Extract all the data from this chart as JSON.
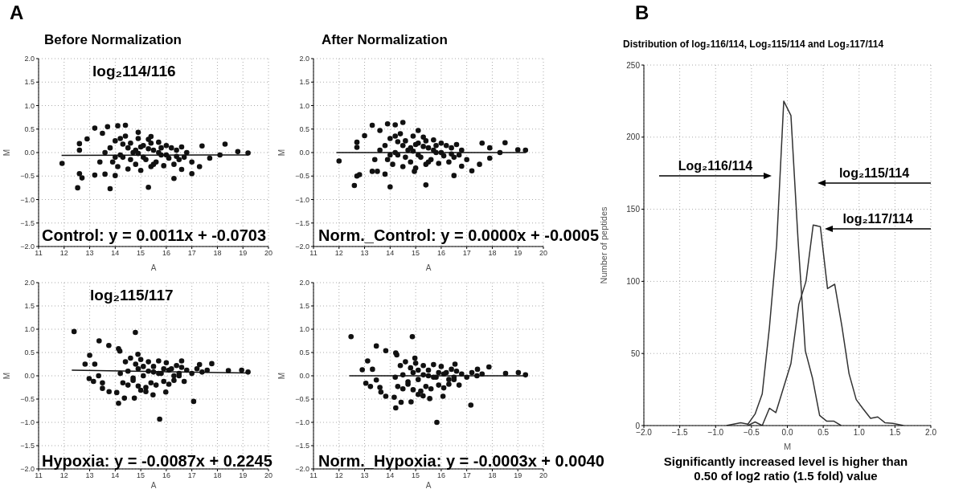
{
  "chart_data": [
    {
      "type": "scatter",
      "title": "Before Normalization",
      "xlabel": "A",
      "ylabel": "M",
      "annotations": [
        "A",
        "log₂114/116",
        "Control: y = 0.0011x + -0.0703"
      ],
      "xlim": [
        11,
        20
      ],
      "ylim": [
        -2,
        2
      ],
      "xticks": [
        11,
        12,
        13,
        14,
        15,
        16,
        17,
        18,
        19,
        20
      ],
      "yticks": [
        {
          "value": -2,
          "label": "−2.0"
        },
        {
          "value": -1.5,
          "label": "−1.5"
        },
        {
          "value": -1,
          "label": "−1.0"
        },
        {
          "value": -0.5,
          "label": "−0.5"
        },
        {
          "value": 0,
          "label": "0.0"
        },
        {
          "value": 0.5,
          "label": "0.5"
        },
        {
          "value": 1,
          "label": "1.0"
        },
        {
          "value": 1.5,
          "label": "1.5"
        },
        {
          "value": 2,
          "label": "2.0"
        }
      ],
      "grid": true,
      "series": [
        {
          "color": "#111111",
          "marker": "circle",
          "x": [
            11.92,
            12.53,
            12.6,
            12.7,
            12.6,
            12.6,
            12.9,
            13.2,
            13.5,
            13.7,
            13.8,
            14.1,
            14.4,
            15.3,
            16.3,
            17.0,
            17.3,
            17.7,
            18.3,
            18.1,
            18.8,
            19.2,
            17.4,
            13.2,
            13.6,
            14.0,
            14.9,
            15.4,
            16.6,
            13.8,
            13.9,
            14.0,
            14.1,
            14.2,
            14.3,
            14.4,
            14.5,
            14.6,
            14.7,
            14.8,
            14.9,
            15.0,
            15.1,
            15.2,
            15.3,
            15.4,
            15.5,
            15.6,
            15.7,
            15.8,
            15.9,
            16.0,
            16.1,
            16.2,
            16.3,
            16.4,
            16.5,
            16.6,
            16.7,
            16.8,
            17.0,
            14.2,
            14.5,
            14.8,
            15.1,
            15.4,
            15.7,
            16.0,
            14.0,
            14.6,
            15.0,
            15.5,
            13.6,
            13.4,
            14.3,
            14.9,
            15.3,
            15.8,
            16.4
          ],
          "values": [
            -0.23,
            -0.75,
            -0.45,
            -0.54,
            0.19,
            0.05,
            0.29,
            0.52,
            0.41,
            0.55,
            -0.77,
            0.57,
            0.58,
            -0.74,
            -0.55,
            -0.45,
            -0.3,
            -0.12,
            0.18,
            -0.05,
            0.02,
            -0.01,
            0.14,
            -0.48,
            -0.46,
            -0.49,
            0.43,
            0.34,
            -0.36,
            0.1,
            -0.2,
            0.25,
            -0.3,
            0.3,
            -0.1,
            0.35,
            -0.35,
            0.2,
            0.0,
            -0.25,
            0.3,
            -0.38,
            0.15,
            -0.15,
            0.28,
            -0.3,
            0.05,
            -0.2,
            0.22,
            -0.05,
            -0.28,
            0.15,
            -0.12,
            0.1,
            -0.25,
            0.05,
            -0.15,
            0.12,
            -0.1,
            0.0,
            -0.2,
            -0.05,
            0.1,
            0.05,
            -0.1,
            0.2,
            0.0,
            -0.05,
            -0.1,
            -0.15,
            0.12,
            -0.25,
            0.0,
            -0.2,
            0.18,
            -0.02,
            0.08,
            0.1,
            -0.08
          ]
        },
        {
          "type": "line",
          "color": "#111111",
          "marker": "none",
          "x": [
            11.9,
            19.2
          ],
          "values": [
            -0.06,
            -0.05
          ]
        }
      ]
    },
    {
      "type": "scatter",
      "title": "After Normalization",
      "xlabel": "A",
      "ylabel": "M",
      "annotations": [
        "Norm._Control: y = 0.0000x + -0.0005"
      ],
      "xlim": [
        11,
        20
      ],
      "ylim": [
        -2,
        2
      ],
      "xticks": [
        11,
        12,
        13,
        14,
        15,
        16,
        17,
        18,
        19,
        20
      ],
      "yticks": [
        {
          "value": -2,
          "label": "−2.0"
        },
        {
          "value": -1.5,
          "label": "−1.5"
        },
        {
          "value": -1,
          "label": "−1.0"
        },
        {
          "value": -0.5,
          "label": "−0.5"
        },
        {
          "value": 0,
          "label": "0.0"
        },
        {
          "value": 0.5,
          "label": "0.5"
        },
        {
          "value": 1,
          "label": "1.0"
        },
        {
          "value": 1.5,
          "label": "1.5"
        },
        {
          "value": 2,
          "label": "2.0"
        }
      ],
      "grid": true,
      "series": [
        {
          "color": "#111111",
          "marker": "circle",
          "x": [
            12.0,
            12.6,
            12.7,
            12.8,
            12.7,
            12.7,
            13.0,
            13.3,
            13.6,
            13.9,
            14.0,
            14.2,
            14.5,
            15.4,
            15.1,
            16.5,
            17.2,
            17.5,
            17.9,
            18.5,
            18.3,
            19.0,
            19.3,
            17.6,
            17.9,
            13.3,
            13.5,
            13.8,
            14.95,
            16.8,
            13.8,
            13.9,
            14.0,
            14.1,
            14.2,
            14.3,
            14.4,
            14.5,
            14.6,
            14.7,
            14.8,
            14.9,
            15.0,
            15.1,
            15.2,
            15.3,
            15.4,
            15.5,
            15.6,
            15.7,
            15.8,
            15.9,
            16.0,
            16.1,
            16.2,
            16.3,
            16.4,
            16.5,
            16.6,
            16.7,
            16.8,
            17.0,
            14.2,
            14.5,
            14.8,
            15.1,
            15.4,
            15.7,
            16.0,
            14.0,
            14.6,
            15.0,
            15.5,
            13.6,
            13.4,
            14.3,
            14.9,
            15.3,
            15.8,
            16.4
          ],
          "values": [
            -0.18,
            -0.7,
            -0.5,
            -0.47,
            0.22,
            0.11,
            0.36,
            0.58,
            0.47,
            0.61,
            -0.73,
            0.59,
            0.64,
            -0.69,
            0.47,
            -0.49,
            -0.39,
            -0.25,
            -0.12,
            0.21,
            0.0,
            0.06,
            0.05,
            0.2,
            0.1,
            -0.4,
            -0.4,
            -0.46,
            -0.4,
            -0.29,
            0.15,
            -0.15,
            0.3,
            -0.25,
            0.35,
            -0.05,
            0.4,
            -0.3,
            0.25,
            0.05,
            -0.2,
            0.35,
            -0.33,
            0.2,
            -0.1,
            0.33,
            -0.25,
            0.1,
            -0.15,
            0.27,
            0.0,
            -0.23,
            0.2,
            -0.07,
            0.15,
            -0.2,
            0.1,
            -0.1,
            0.17,
            -0.05,
            0.05,
            -0.15,
            0.0,
            0.15,
            0.1,
            -0.05,
            0.25,
            0.05,
            0.0,
            -0.05,
            -0.1,
            0.17,
            -0.2,
            0.05,
            -0.15,
            0.23,
            0.03,
            0.13,
            0.15,
            -0.03
          ]
        },
        {
          "type": "line",
          "color": "#111111",
          "marker": "none",
          "x": [
            11.9,
            19.3
          ],
          "values": [
            0.0,
            0.0
          ]
        }
      ]
    },
    {
      "type": "scatter",
      "xlabel": "A",
      "ylabel": "M",
      "annotations": [
        "log₂115/117",
        "Hypoxia: y = -0.0087x + 0.2245"
      ],
      "xlim": [
        11,
        20
      ],
      "ylim": [
        -2,
        2
      ],
      "xticks": [
        11,
        12,
        13,
        14,
        15,
        16,
        17,
        18,
        19,
        20
      ],
      "yticks": [
        {
          "value": -2,
          "label": "−2.0"
        },
        {
          "value": -1.5,
          "label": "−1.5"
        },
        {
          "value": -1,
          "label": "−1.0"
        },
        {
          "value": -0.5,
          "label": "−0.5"
        },
        {
          "value": 0,
          "label": "0.0"
        },
        {
          "value": 0.5,
          "label": "0.5"
        },
        {
          "value": 1,
          "label": "1.0"
        },
        {
          "value": 1.5,
          "label": "1.5"
        },
        {
          "value": 2,
          "label": "2.0"
        }
      ],
      "grid": true,
      "series": [
        {
          "color": "#111111",
          "marker": "circle",
          "x": [
            12.39,
            14.79,
            13.37,
            13.75,
            14.13,
            14.18,
            13.0,
            12.82,
            13.2,
            12.98,
            13.15,
            13.35,
            13.5,
            13.5,
            13.76,
            14.06,
            14.13,
            14.36,
            14.75,
            15.0,
            15.2,
            15.48,
            15.74,
            15.98,
            17.07,
            17.3,
            17.78,
            18.43,
            18.95,
            19.2,
            16.6,
            14.89,
            14.2,
            14.3,
            14.4,
            14.5,
            14.6,
            14.7,
            14.8,
            14.9,
            15.0,
            15.1,
            15.2,
            15.3,
            15.4,
            15.5,
            15.6,
            15.7,
            15.8,
            15.9,
            16.0,
            16.1,
            16.2,
            16.3,
            16.4,
            16.5,
            16.6,
            16.7,
            16.8,
            17.0,
            17.2,
            17.4,
            17.6,
            14.5,
            14.9,
            15.3,
            15.7,
            16.1,
            16.5,
            14.7,
            15.1,
            15.5,
            15.9,
            16.3
          ],
          "values": [
            0.95,
            0.93,
            0.75,
            0.65,
            0.58,
            0.53,
            0.44,
            0.25,
            0.25,
            -0.06,
            -0.12,
            0.0,
            -0.15,
            -0.27,
            -0.34,
            -0.36,
            -0.59,
            -0.48,
            -0.48,
            -0.31,
            -0.34,
            -0.41,
            -0.93,
            -0.35,
            -0.55,
            0.24,
            0.26,
            0.11,
            0.12,
            0.08,
            0.32,
            0.46,
            0.05,
            -0.15,
            0.3,
            -0.2,
            0.38,
            -0.1,
            0.25,
            -0.22,
            0.35,
            0.0,
            -0.25,
            0.3,
            -0.15,
            0.2,
            -0.2,
            0.32,
            0.05,
            -0.12,
            0.28,
            -0.18,
            0.15,
            -0.1,
            0.22,
            0.0,
            0.18,
            -0.12,
            0.12,
            0.05,
            0.15,
            0.08,
            0.12,
            0.1,
            0.15,
            0.1,
            0.05,
            0.12,
            0.05,
            -0.05,
            0.2,
            0.08,
            0.15,
            0.0
          ]
        },
        {
          "type": "line",
          "color": "#111111",
          "marker": "none",
          "x": [
            12.3,
            19.2
          ],
          "values": [
            0.12,
            0.06
          ]
        }
      ]
    },
    {
      "type": "scatter",
      "xlabel": "A",
      "ylabel": "M",
      "annotations": [
        "Norm._Hypoxia: y = -0.0003x + 0.0040"
      ],
      "xlim": [
        11,
        20
      ],
      "ylim": [
        -2,
        2
      ],
      "xticks": [
        11,
        12,
        13,
        14,
        15,
        16,
        17,
        18,
        19,
        20
      ],
      "yticks": [
        {
          "value": -2,
          "label": "−2.0"
        },
        {
          "value": -1.5,
          "label": "−1.5"
        },
        {
          "value": -1,
          "label": "−1.0"
        },
        {
          "value": -0.5,
          "label": "−0.5"
        },
        {
          "value": 0,
          "label": "0.0"
        },
        {
          "value": 0.5,
          "label": "0.5"
        },
        {
          "value": 1,
          "label": "1.0"
        },
        {
          "value": 1.5,
          "label": "1.5"
        },
        {
          "value": 2,
          "label": "2.0"
        }
      ],
      "grid": true,
      "series": [
        {
          "color": "#111111",
          "marker": "circle",
          "x": [
            12.47,
            14.87,
            13.46,
            13.83,
            14.22,
            14.26,
            13.12,
            12.91,
            13.31,
            13.05,
            13.23,
            13.46,
            13.6,
            13.64,
            13.83,
            14.16,
            14.22,
            14.43,
            14.82,
            15.1,
            15.29,
            15.55,
            15.83,
            16.07,
            17.16,
            17.42,
            17.87,
            18.52,
            19.02,
            19.3,
            16.54,
            14.97,
            14.2,
            14.3,
            14.4,
            14.5,
            14.6,
            14.7,
            14.8,
            14.9,
            15.0,
            15.1,
            15.2,
            15.3,
            15.4,
            15.5,
            15.6,
            15.7,
            15.8,
            15.9,
            16.0,
            16.1,
            16.2,
            16.3,
            16.4,
            16.5,
            16.6,
            16.7,
            16.8,
            17.0,
            17.2,
            17.4,
            17.6,
            14.5,
            14.9,
            15.3,
            15.7,
            16.1,
            16.5,
            14.7,
            15.1,
            15.5,
            15.9,
            16.3
          ],
          "values": [
            0.84,
            0.84,
            0.64,
            0.54,
            0.49,
            0.45,
            0.32,
            0.13,
            0.14,
            -0.16,
            -0.23,
            -0.09,
            -0.25,
            -0.35,
            -0.44,
            -0.46,
            -0.69,
            -0.57,
            -0.56,
            -0.4,
            -0.43,
            -0.49,
            -1.0,
            -0.44,
            -0.63,
            0.14,
            0.19,
            0.05,
            0.07,
            0.02,
            0.25,
            0.38,
            -0.03,
            -0.23,
            0.22,
            -0.28,
            0.3,
            -0.18,
            0.17,
            -0.3,
            0.27,
            -0.08,
            -0.33,
            0.22,
            -0.23,
            0.12,
            -0.28,
            0.24,
            -0.03,
            -0.2,
            0.2,
            -0.26,
            0.07,
            -0.18,
            0.14,
            -0.08,
            0.1,
            -0.2,
            0.04,
            -0.03,
            0.07,
            0.0,
            0.04,
            0.02,
            0.07,
            0.02,
            -0.03,
            0.04,
            -0.03,
            -0.13,
            0.12,
            0.0,
            0.07,
            -0.08
          ]
        },
        {
          "type": "line",
          "color": "#111111",
          "marker": "none",
          "x": [
            12.4,
            19.3
          ],
          "values": [
            0.0,
            0.0
          ]
        }
      ]
    },
    {
      "type": "line",
      "title": "Distribution of log₂116/114, Log₂115/114 and Log₂117/114",
      "xlabel": "M",
      "ylabel": "Number of peptides",
      "annotations": [
        "B",
        "Log₂116/114",
        "log₂115/114",
        "log₂117/114",
        "Significantly increased level is higher than 0.50 of log2 ratio (1.5 fold) value"
      ],
      "xlim": [
        -2,
        2
      ],
      "ylim": [
        0,
        250
      ],
      "xticks": [
        {
          "value": -2,
          "label": "−2.0"
        },
        {
          "value": -1.5,
          "label": "−1.5"
        },
        {
          "value": -1,
          "label": "−1.0"
        },
        {
          "value": -0.5,
          "label": "−0.5"
        },
        {
          "value": 0,
          "label": "0.0"
        },
        {
          "value": 0.5,
          "label": "0.5"
        },
        {
          "value": 1,
          "label": "1.0"
        },
        {
          "value": 1.5,
          "label": "1.5"
        },
        {
          "value": 2,
          "label": "2.0"
        }
      ],
      "yticks": [
        0,
        50,
        100,
        150,
        200,
        250
      ],
      "grid": true,
      "series": [
        {
          "color": "#333333",
          "x": [
            -0.85,
            -0.75,
            -0.65,
            -0.55,
            -0.45,
            -0.35,
            -0.25,
            -0.15,
            -0.05,
            0.05,
            0.15,
            0.25,
            0.35,
            0.45,
            0.55,
            0.65,
            0.75
          ],
          "values": [
            0,
            1,
            2,
            1,
            8,
            22,
            68,
            125,
            225,
            215,
            128,
            52,
            33,
            7,
            3,
            3,
            0
          ]
        },
        {
          "color": "#333333",
          "x": [
            -0.55,
            -0.45,
            -0.35,
            -0.25,
            -0.16,
            0.05,
            0.16,
            0.26,
            0.36,
            0.46,
            0.56,
            0.66,
            0.76,
            0.86,
            0.96,
            1.05,
            1.16,
            1.26,
            1.36,
            1.47,
            1.62
          ],
          "values": [
            0,
            2.5,
            0,
            12,
            9,
            43,
            84,
            100,
            139,
            138,
            95,
            98,
            69,
            36,
            18,
            12,
            5,
            6,
            2,
            1.5,
            0
          ]
        }
      ]
    }
  ]
}
